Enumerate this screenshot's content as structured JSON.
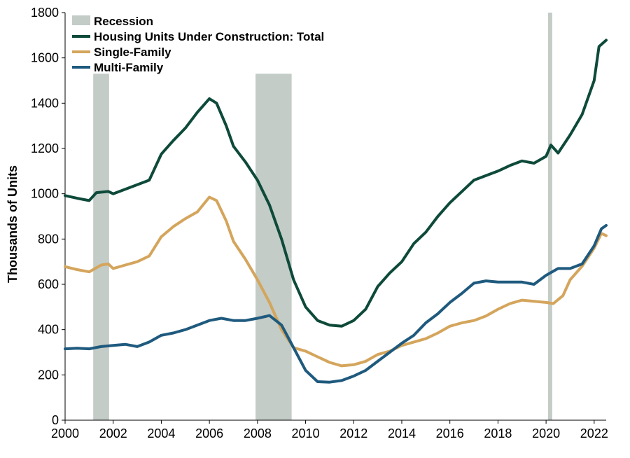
{
  "chart_data": {
    "type": "line",
    "title": "",
    "xlabel": "",
    "ylabel": "Thousands of Units",
    "xlim": [
      2000,
      2022.5
    ],
    "ylim": [
      0,
      1800
    ],
    "x_ticks": [
      2000,
      2002,
      2004,
      2006,
      2008,
      2010,
      2012,
      2014,
      2016,
      2018,
      2020,
      2022
    ],
    "x_tick_labels": [
      "2000",
      "2002",
      "2004",
      "2006",
      "2008",
      "2010",
      "2012",
      "2014",
      "2016",
      "2018",
      "2020",
      "2022"
    ],
    "y_ticks": [
      0,
      200,
      400,
      600,
      800,
      1000,
      1200,
      1400,
      1600,
      1800
    ],
    "y_tick_labels": [
      "0",
      "200",
      "400",
      "600",
      "800",
      "1000",
      "1200",
      "1400",
      "1600",
      "1800"
    ],
    "grid": false,
    "legend_position": "top-left",
    "recessions": {
      "name": "Recession",
      "color": "#c3ccc6",
      "periods": [
        [
          2001.17,
          2001.83
        ],
        [
          2007.92,
          2009.42
        ],
        [
          2020.08,
          2020.25
        ]
      ]
    },
    "series": [
      {
        "name": "Housing Units Under Construction: Total",
        "color": "#0e4a3a",
        "x": [
          2000,
          2000.5,
          2001,
          2001.3,
          2001.8,
          2002,
          2002.5,
          2003,
          2003.5,
          2004,
          2004.5,
          2005,
          2005.5,
          2006,
          2006.3,
          2006.7,
          2007,
          2007.5,
          2008,
          2008.5,
          2009,
          2009.5,
          2010,
          2010.5,
          2011,
          2011.5,
          2012,
          2012.5,
          2013,
          2013.5,
          2014,
          2014.5,
          2015,
          2015.5,
          2016,
          2016.5,
          2017,
          2017.5,
          2018,
          2018.5,
          2019,
          2019.5,
          2020,
          2020.2,
          2020.5,
          2021,
          2021.5,
          2022,
          2022.2,
          2022.5
        ],
        "values": [
          992,
          980,
          970,
          1005,
          1010,
          1000,
          1020,
          1040,
          1060,
          1175,
          1235,
          1290,
          1360,
          1420,
          1400,
          1300,
          1210,
          1140,
          1060,
          950,
          800,
          620,
          500,
          440,
          420,
          415,
          440,
          490,
          590,
          650,
          700,
          780,
          830,
          900,
          960,
          1010,
          1060,
          1080,
          1100,
          1125,
          1145,
          1135,
          1165,
          1215,
          1180,
          1260,
          1350,
          1500,
          1650,
          1678
        ]
      },
      {
        "name": "Single-Family",
        "color": "#d4a55c",
        "x": [
          2000,
          2000.5,
          2001,
          2001.5,
          2001.8,
          2002,
          2002.5,
          2003,
          2003.5,
          2004,
          2004.5,
          2005,
          2005.5,
          2006,
          2006.3,
          2006.7,
          2007,
          2007.5,
          2008,
          2008.5,
          2009,
          2009.5,
          2010,
          2010.5,
          2011,
          2011.5,
          2012,
          2012.5,
          2013,
          2013.5,
          2014,
          2014.5,
          2015,
          2015.5,
          2016,
          2016.5,
          2017,
          2017.5,
          2018,
          2018.5,
          2019,
          2019.5,
          2020,
          2020.3,
          2020.7,
          2021,
          2021.5,
          2022,
          2022.3,
          2022.5
        ],
        "values": [
          678,
          665,
          655,
          685,
          690,
          670,
          685,
          700,
          725,
          810,
          855,
          890,
          920,
          985,
          970,
          880,
          790,
          710,
          620,
          520,
          400,
          320,
          305,
          280,
          255,
          240,
          245,
          260,
          290,
          305,
          330,
          345,
          360,
          385,
          415,
          430,
          440,
          460,
          490,
          515,
          530,
          525,
          520,
          515,
          550,
          620,
          680,
          760,
          825,
          815
        ]
      },
      {
        "name": "Multi-Family",
        "color": "#1f5a7e",
        "x": [
          2000,
          2000.5,
          2001,
          2001.5,
          2002,
          2002.5,
          2003,
          2003.5,
          2004,
          2004.5,
          2005,
          2005.5,
          2006,
          2006.5,
          2007,
          2007.5,
          2008,
          2008.5,
          2009,
          2009.5,
          2010,
          2010.5,
          2011,
          2011.5,
          2012,
          2012.5,
          2013,
          2013.5,
          2014,
          2014.5,
          2015,
          2015.5,
          2016,
          2016.5,
          2017,
          2017.5,
          2018,
          2018.5,
          2019,
          2019.5,
          2020,
          2020.5,
          2021,
          2021.5,
          2022,
          2022.3,
          2022.5
        ],
        "values": [
          315,
          318,
          315,
          325,
          330,
          335,
          325,
          345,
          375,
          385,
          400,
          420,
          440,
          450,
          440,
          440,
          450,
          462,
          420,
          320,
          220,
          170,
          168,
          175,
          195,
          220,
          260,
          300,
          340,
          375,
          430,
          470,
          520,
          560,
          605,
          615,
          610,
          610,
          610,
          600,
          640,
          670,
          670,
          690,
          770,
          845,
          860
        ]
      }
    ]
  }
}
